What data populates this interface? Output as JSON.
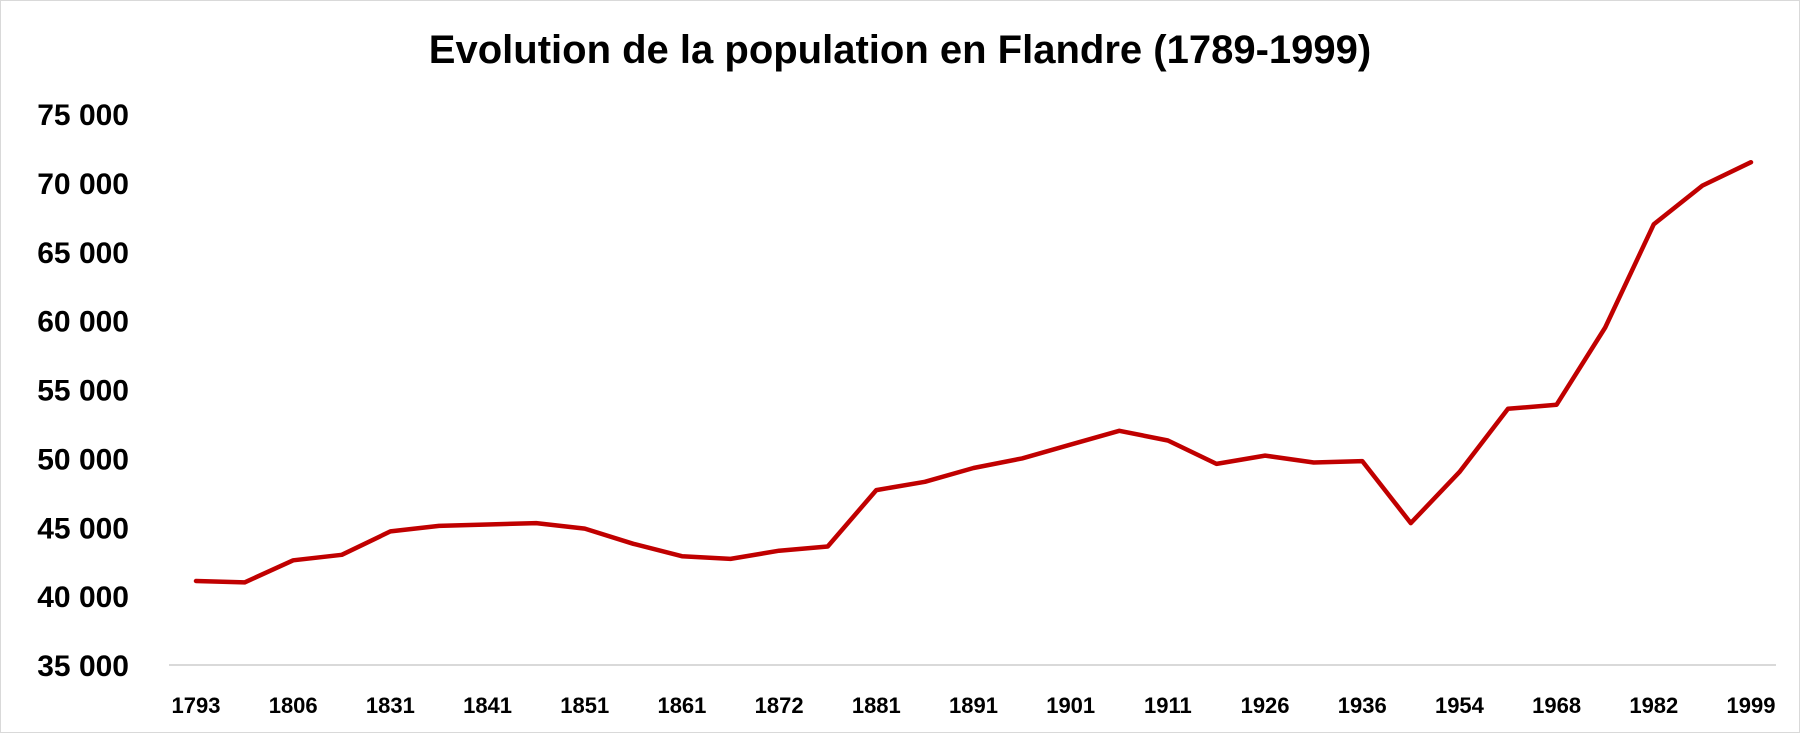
{
  "chart_data": {
    "type": "line",
    "title": "Evolution de la population en Flandre (1789-1999)",
    "xlabel": "",
    "ylabel": "",
    "ylim": [
      35000,
      75000
    ],
    "y_ticks": [
      35000,
      40000,
      45000,
      50000,
      55000,
      60000,
      65000,
      70000,
      75000
    ],
    "y_tick_labels": [
      "35 000",
      "40 000",
      "45 000",
      "50 000",
      "55 000",
      "60 000",
      "65 000",
      "70 000",
      "75 000"
    ],
    "x_tick_labels": [
      "1793",
      "1806",
      "1831",
      "1841",
      "1851",
      "1861",
      "1872",
      "1881",
      "1891",
      "1901",
      "1911",
      "1926",
      "1936",
      "1954",
      "1968",
      "1982",
      "1999"
    ],
    "grid": false,
    "legend": "none",
    "series": [
      {
        "color": "#c00000",
        "values": [
          41100,
          41000,
          42600,
          43000,
          44700,
          45100,
          45200,
          45300,
          44900,
          43800,
          42900,
          42700,
          43300,
          43600,
          47700,
          48300,
          49300,
          50000,
          51000,
          52000,
          51300,
          49600,
          50200,
          49700,
          49800,
          45300,
          49000,
          53600,
          53900,
          59500,
          67000,
          69800,
          71500
        ]
      }
    ]
  }
}
